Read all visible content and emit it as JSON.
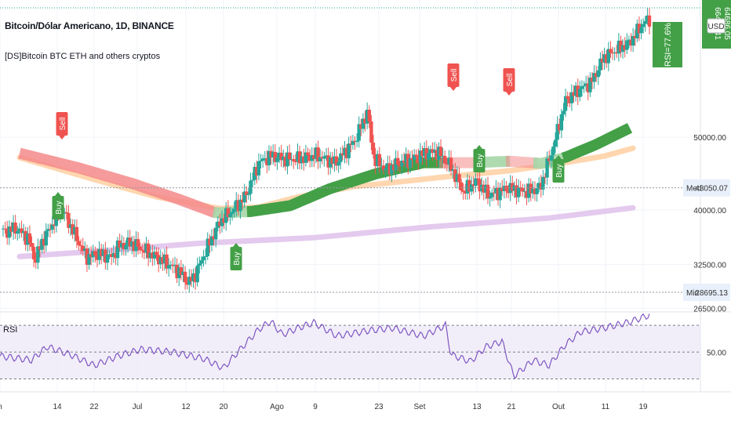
{
  "header": {
    "title": "Bitcoin/Dólar Americano, 1D, BINANCE",
    "indicator": "[DS]Bitcoin BTC ETH and others cryptos"
  },
  "price_axis": {
    "currency": "USD",
    "top_label": "66452.41",
    "top_label2": "64686.05",
    "med_label": "Med",
    "med_value": "43050.07",
    "min_label": "Min",
    "min_value": "28695.13"
  },
  "rsi_badge": "RSI=77.6%",
  "rsi_panel_label": "RSI",
  "signals": {
    "buy": "Buy",
    "sell": "Sell"
  },
  "colors": {
    "up": "#26a69a",
    "down": "#ef5350",
    "band_green": "#43a047",
    "band_red": "#f48a8a",
    "band_orange": "#ffd2a6",
    "band_purple": "#e1c4ec",
    "rsi_line": "#7e57c2",
    "rsi_fill": "#ede7f6"
  },
  "chart_data": [
    {
      "type": "candlestick",
      "title": "Bitcoin/Dólar Americano, 1D, BINANCE",
      "x_ticks": [
        "n",
        "14",
        "22",
        "Jul",
        "12",
        "20",
        "Ago",
        "9",
        "23",
        "Set",
        "13",
        "21",
        "Out",
        "11",
        "19"
      ],
      "y_ticks": [
        "50000.00",
        "40000.00",
        "32500.00",
        "26500.00"
      ],
      "y_range": [
        26000,
        68000
      ],
      "signals": [
        {
          "label": "Sell",
          "x": "10 Jun"
        },
        {
          "label": "Buy",
          "x": "13 Jun"
        },
        {
          "label": "Buy",
          "x": "20 Jul"
        },
        {
          "label": "Sell",
          "x": "06 Sep"
        },
        {
          "label": "Buy",
          "x": "11 Sep"
        },
        {
          "label": "Sell",
          "x": "17 Sep"
        },
        {
          "label": "Buy",
          "x": "29 Sep"
        }
      ],
      "reference_levels": [
        {
          "label": "Med",
          "value": 43050.07
        },
        {
          "label": "Min",
          "value": 28695.13
        }
      ],
      "annotation": "RSI=77.6%"
    },
    {
      "type": "line",
      "title": "RSI",
      "y_ticks": [
        "50.00"
      ],
      "y_range": [
        25,
        80
      ],
      "guides": [
        70,
        50,
        30
      ],
      "last_value": 77.6
    }
  ]
}
